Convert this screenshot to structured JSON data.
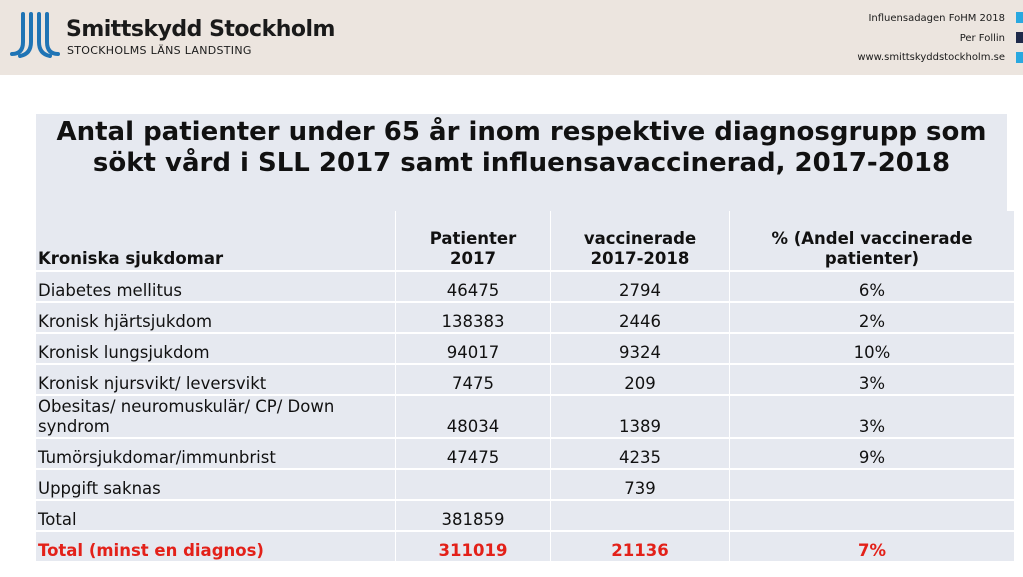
{
  "header": {
    "brand_name": "Smittskydd Stockholm",
    "brand_sub": "STOCKHOLMS LÄNS LANDSTING",
    "meta": [
      "Influensadagen FoHM 2018",
      "Per Follin",
      "www.smittskyddstockholm.se"
    ],
    "logo_icon": "jl-logo-icon",
    "colors": {
      "logo_blue": "#1f74b5",
      "square_light": "#29a8e0",
      "square_dark": "#1e2a4a",
      "header_bg": "#ece5df"
    }
  },
  "slide": {
    "title_line1": "Antal patienter under 65 år inom respektive diagnosgrupp som",
    "title_line2": "sökt vård i SLL 2017 samt influensavaccinerad, 2017-2018"
  },
  "table": {
    "headers": {
      "c0": "Kroniska sjukdomar",
      "c1_line1": "Patienter",
      "c1_line2": "2017",
      "c2_line1": "vaccinerade",
      "c2_line2": "2017-2018",
      "c3_line1": "% (Andel vaccinerade",
      "c3_line2": "patienter)"
    },
    "rows": [
      {
        "label": "Diabetes mellitus",
        "patients": "46475",
        "vaccinated": "2794",
        "percent": "6%"
      },
      {
        "label": "Kronisk hjärtsjukdom",
        "patients": "138383",
        "vaccinated": "2446",
        "percent": "2%"
      },
      {
        "label": "Kronisk lungsjukdom",
        "patients": "94017",
        "vaccinated": "9324",
        "percent": "10%"
      },
      {
        "label": "Kronisk njursvikt/ leversvikt",
        "patients": "7475",
        "vaccinated": "209",
        "percent": "3%"
      },
      {
        "label_line1": "Obesitas/ neuromuskulär/ CP/ Down",
        "label_line2": "syndrom",
        "patients": "48034",
        "vaccinated": "1389",
        "percent": "3%"
      },
      {
        "label": "Tumörsjukdomar/immunbrist",
        "patients": "47475",
        "vaccinated": "4235",
        "percent": "9%"
      },
      {
        "label": "Uppgift saknas",
        "patients": "",
        "vaccinated": "739",
        "percent": ""
      },
      {
        "label": "Total",
        "patients": "381859",
        "vaccinated": "",
        "percent": ""
      },
      {
        "label": "Total (minst en diagnos)",
        "patients": "311019",
        "vaccinated": "21136",
        "percent": "7%"
      }
    ],
    "colors": {
      "cell_bg": "#e6e9f0",
      "total_red": "#e32119"
    }
  }
}
